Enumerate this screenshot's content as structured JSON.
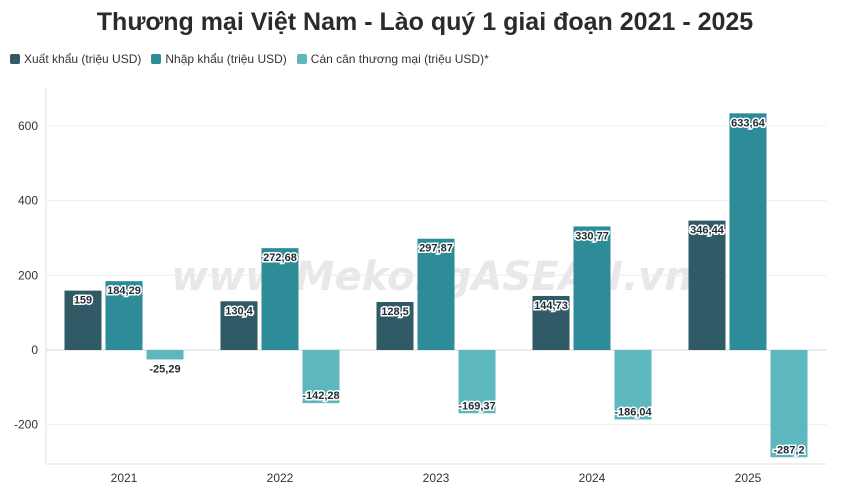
{
  "chart_data": {
    "type": "bar",
    "title": "Thương mại Việt Nam - Lào quý 1 giai đoạn 2021 - 2025",
    "categories": [
      "2021",
      "2022",
      "2023",
      "2024",
      "2025"
    ],
    "series": [
      {
        "name": "Xuất khẩu (triệu USD)",
        "color": "#2f5a66",
        "values": [
          159,
          130.4,
          128.5,
          144.73,
          346.44
        ],
        "labels": [
          "159",
          "130,4",
          "128,5",
          "144,73",
          "346,44"
        ]
      },
      {
        "name": "Nhập khẩu (triệu USD)",
        "color": "#2e8c99",
        "values": [
          184.29,
          272.68,
          297.87,
          330.77,
          633.64
        ],
        "labels": [
          "184,29",
          "272,68",
          "297,87",
          "330,77",
          "633,64"
        ]
      },
      {
        "name": "Cán cân thương mại (triệu USD)*",
        "color": "#5db7bf",
        "values": [
          -25.29,
          -142.28,
          -169.37,
          -186.04,
          -287.2
        ],
        "labels": [
          "-25,29",
          "-142,28",
          "-169,37",
          "-186,04",
          "-287,2"
        ]
      }
    ],
    "yticks": [
      -200,
      0,
      200,
      400,
      600
    ],
    "ylim": [
      -300,
      700
    ],
    "grid": true,
    "legend": "top-left",
    "watermark": "www.MekongASEAN.vn"
  }
}
